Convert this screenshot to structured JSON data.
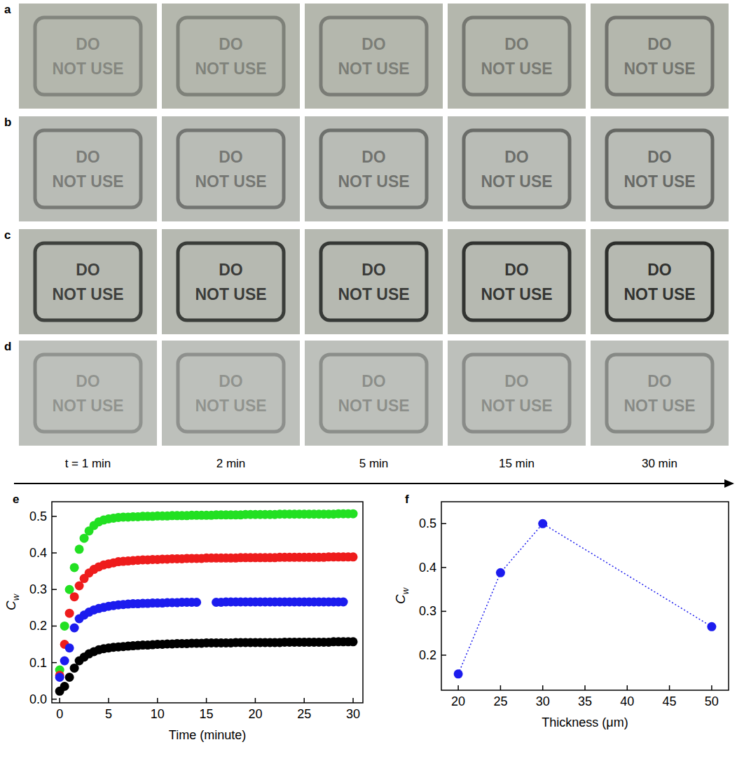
{
  "photos": {
    "rows": [
      {
        "label": "a"
      },
      {
        "label": "b"
      },
      {
        "label": "c"
      },
      {
        "label": "d"
      }
    ],
    "sign_text": [
      "DO",
      "NOT USE"
    ],
    "times": [
      "t = 1 min",
      "2 min",
      "5 min",
      "15 min",
      "30 min"
    ]
  },
  "chart_data": [
    {
      "type": "scatter",
      "panel_label": "e",
      "x_label": "Time (minute)",
      "y_label": "Cw",
      "x": [
        0,
        0.5,
        1,
        1.5,
        2,
        2.5,
        3,
        3.5,
        4,
        4.5,
        5,
        5.5,
        6,
        6.5,
        7,
        7.5,
        8,
        8.5,
        9,
        9.5,
        10,
        10.5,
        11,
        11.5,
        12,
        12.5,
        13,
        13.5,
        14,
        14.5,
        15,
        15.5,
        16,
        16.5,
        17,
        17.5,
        18,
        18.5,
        19,
        19.5,
        20,
        20.5,
        21,
        21.5,
        22,
        22.5,
        23,
        23.5,
        24,
        24.5,
        25,
        25.5,
        26,
        26.5,
        27,
        27.5,
        28,
        28.5,
        29,
        29.5,
        30
      ],
      "series": [
        {
          "color": "#22e022",
          "marker": "circle",
          "values": [
            0.08,
            0.2,
            0.3,
            0.36,
            0.41,
            0.44,
            0.46,
            0.475,
            0.485,
            0.49,
            0.493,
            0.495,
            0.497,
            0.498,
            0.498,
            0.499,
            0.499,
            0.5,
            0.5,
            0.5,
            0.501,
            0.501,
            0.501,
            0.502,
            0.502,
            0.502,
            0.502,
            0.503,
            0.503,
            0.503,
            0.503,
            0.503,
            0.504,
            0.504,
            0.504,
            0.504,
            0.504,
            0.504,
            0.505,
            0.505,
            0.505,
            0.505,
            0.505,
            0.505,
            0.505,
            0.506,
            0.506,
            0.506,
            0.506,
            0.506,
            0.506,
            0.506,
            0.506,
            0.506,
            0.506,
            0.506,
            0.506,
            0.507,
            0.507,
            0.507,
            0.507
          ]
        },
        {
          "color": "#ee1c1c",
          "marker": "circle",
          "values": [
            0.065,
            0.15,
            0.235,
            0.28,
            0.31,
            0.33,
            0.345,
            0.355,
            0.362,
            0.367,
            0.37,
            0.373,
            0.376,
            0.377,
            0.378,
            0.379,
            0.38,
            0.381,
            0.381,
            0.382,
            0.382,
            0.383,
            0.383,
            0.384,
            0.384,
            0.384,
            0.385,
            0.385,
            0.385,
            0.385,
            0.386,
            0.386,
            0.386,
            0.386,
            0.386,
            0.386,
            0.386,
            0.387,
            0.387,
            0.387,
            0.387,
            0.387,
            0.387,
            0.387,
            0.387,
            0.388,
            0.388,
            0.388,
            0.388,
            0.388,
            0.388,
            0.388,
            0.388,
            0.388,
            0.388,
            0.389,
            0.389,
            0.389,
            0.389,
            0.389,
            0.389
          ]
        },
        {
          "color": "#1c1cee",
          "marker": "circle",
          "values": [
            0.06,
            0.105,
            0.14,
            0.195,
            0.22,
            0.23,
            0.238,
            0.244,
            0.248,
            0.251,
            0.254,
            0.256,
            0.258,
            0.259,
            0.26,
            0.261,
            0.261,
            0.262,
            0.262,
            0.263,
            0.263,
            0.263,
            0.264,
            0.264,
            0.264,
            0.265,
            0.265,
            0.265,
            0.265,
            null,
            null,
            null,
            0.265,
            0.265,
            0.266,
            0.266,
            0.266,
            0.266,
            0.266,
            0.266,
            0.266,
            0.266,
            0.266,
            0.266,
            0.266,
            0.266,
            0.266,
            0.266,
            0.266,
            0.266,
            0.266,
            0.266,
            0.266,
            0.266,
            0.266,
            0.266,
            0.266,
            0.266,
            0.266,
            null,
            null
          ]
        },
        {
          "color": "#000000",
          "marker": "circle",
          "values": [
            0.022,
            0.035,
            0.06,
            0.085,
            0.105,
            0.115,
            0.124,
            0.13,
            0.135,
            0.138,
            0.14,
            0.142,
            0.143,
            0.144,
            0.145,
            0.146,
            0.147,
            0.148,
            0.148,
            0.149,
            0.15,
            0.15,
            0.151,
            0.151,
            0.152,
            0.152,
            0.152,
            0.153,
            0.153,
            0.153,
            0.154,
            0.154,
            0.154,
            0.154,
            0.154,
            0.154,
            0.155,
            0.155,
            0.155,
            0.155,
            0.155,
            0.155,
            0.155,
            0.155,
            0.155,
            0.155,
            0.156,
            0.156,
            0.156,
            0.156,
            0.156,
            0.156,
            0.156,
            0.156,
            0.156,
            0.156,
            0.157,
            0.157,
            0.157,
            0.157,
            0.157
          ]
        }
      ],
      "xlim": [
        -0.8,
        31
      ],
      "xticks": [
        0,
        5,
        10,
        15,
        20,
        25,
        30
      ],
      "ylim": [
        -0.01,
        0.54
      ],
      "yticks": [
        {
          "value": 0,
          "label": "0.0"
        },
        0.1,
        0.2,
        0.3,
        0.4,
        0.5
      ],
      "grid": false
    },
    {
      "type": "line",
      "panel_label": "f",
      "x_label": "Thickness (μm)",
      "y_label": "Cw",
      "x": [
        20,
        25,
        30,
        50
      ],
      "values": [
        0.157,
        0.388,
        0.5,
        0.265
      ],
      "color": "#1c1cee",
      "marker": "circle",
      "line_style": "dotted",
      "xlim": [
        18,
        52
      ],
      "xticks": [
        20,
        25,
        30,
        35,
        40,
        45,
        50
      ],
      "ylim": [
        0.12,
        0.55
      ],
      "yticks": [
        0.2,
        0.3,
        0.4,
        0.5
      ],
      "grid": false
    }
  ]
}
